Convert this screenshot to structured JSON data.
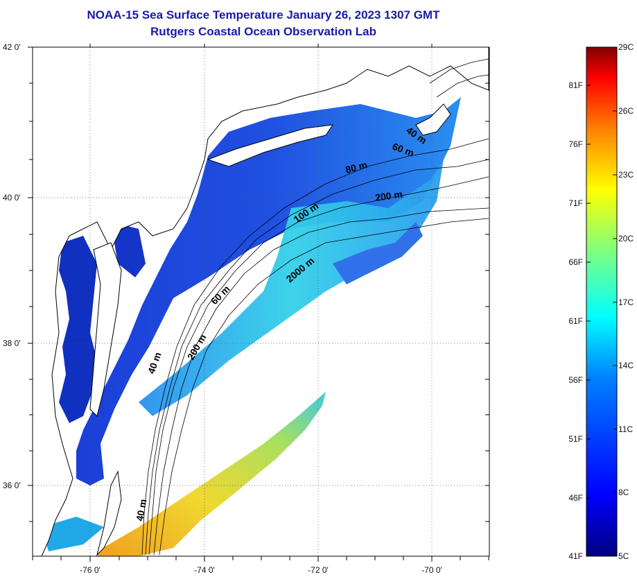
{
  "title": {
    "line1": "NOAA-15 Sea Surface Temperature January 26, 2023 1307 GMT",
    "line2": "Rutgers Coastal Ocean Observation Lab"
  },
  "axes": {
    "lat_labels": [
      "42 0'",
      "40 0'",
      "38 0'",
      "36 0'"
    ],
    "lon_labels": [
      "-76 0'",
      "-74 0'",
      "-72 0'",
      "-70 0'"
    ]
  },
  "contours": {
    "labels": [
      "40 m",
      "60 m",
      "80 m",
      "200 m",
      "100 m",
      "2000 m",
      "60 m",
      "200 m",
      "40 m",
      "40 m"
    ]
  },
  "colorbar": {
    "fahrenheit": [
      "81F",
      "76F",
      "71F",
      "66F",
      "61F",
      "56F",
      "51F",
      "46F",
      "41F"
    ],
    "celsius": [
      "29C",
      "26C",
      "23C",
      "20C",
      "17C",
      "14C",
      "11C",
      "8C",
      "5C"
    ],
    "colors": [
      "#800000",
      "#ff0000",
      "#ff8000",
      "#ffff00",
      "#80ff80",
      "#00ffff",
      "#0080ff",
      "#0000ff",
      "#000080"
    ]
  },
  "colors": {
    "title": "#1a1aa8",
    "land": "#ffffff",
    "water_cold": "#1a3fd6",
    "water_mid": "#2fd0e8",
    "water_warm": "#e0d030"
  }
}
